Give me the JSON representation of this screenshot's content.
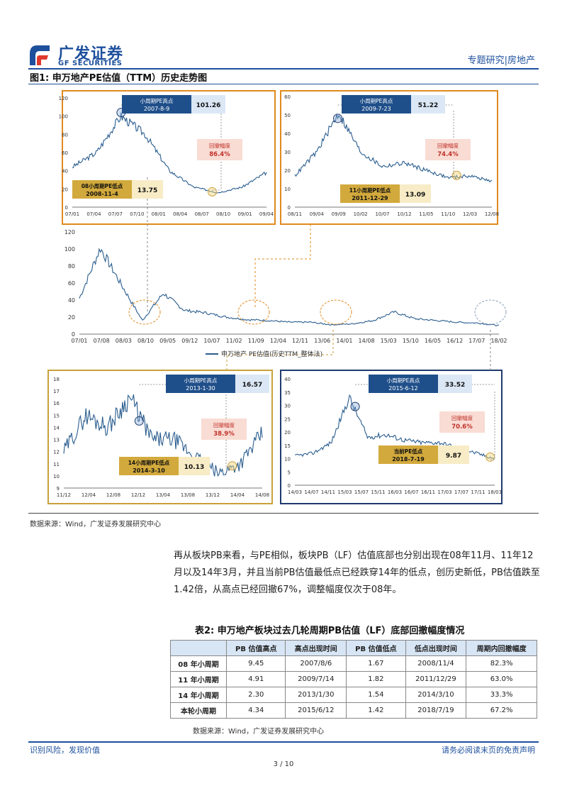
{
  "header": {
    "brand_zh": "广发证券",
    "brand_en": "GF SECURITIES",
    "section": "专题研究|房地产"
  },
  "figure": {
    "title": "图1:  申万地产PE估值（TTM）历史走势图",
    "source": "数据来源：Wind，广发证券发展研究中心",
    "main": {
      "legend": "申万地产 PE估值(历史TTM_整体法)",
      "xticks": [
        "07/01",
        "07/08",
        "08/03",
        "08/10",
        "09/05",
        "09/12",
        "10/07",
        "11/02",
        "11/09",
        "12/04",
        "12/11",
        "13/06",
        "14/01",
        "14/08",
        "15/03",
        "15/10",
        "16/05",
        "16/12",
        "17/07",
        "18/02"
      ],
      "yticks": [
        "0",
        "20",
        "40",
        "60",
        "80",
        "100",
        "120"
      ]
    },
    "panels": [
      {
        "xticks": [
          "07/01",
          "07/04",
          "07/07",
          "07/10",
          "08/01",
          "08/04",
          "08/07",
          "08/10",
          "09/01",
          "09/04"
        ],
        "yticks": [
          "0",
          "20",
          "40",
          "60",
          "80",
          "100",
          "120"
        ],
        "high_label": "小周期PE高点",
        "high_date": "2007-8-9",
        "high_value": "101.26",
        "low_label": "08小周期PE低点",
        "low_date": "2008-11-4",
        "low_value": "13.75",
        "drop_label": "回撤幅度",
        "drop_value": "86.4%"
      },
      {
        "xticks": [
          "08/11",
          "09/04",
          "09/09",
          "10/02",
          "10/07",
          "10/12",
          "11/05",
          "11/10",
          "12/03",
          "12/08"
        ],
        "yticks": [
          "0",
          "10",
          "20",
          "30",
          "40",
          "50",
          "60"
        ],
        "high_label": "小周期PE高点",
        "high_date": "2009-7-23",
        "high_value": "51.22",
        "low_label": "11小周期PE低点",
        "low_date": "2011-12-29",
        "low_value": "13.09",
        "drop_label": "回撤幅度",
        "drop_value": "74.4%"
      },
      {
        "xticks": [
          "11/12",
          "12/04",
          "12/08",
          "12/12",
          "13/04",
          "13/08",
          "13/12",
          "14/04",
          "14/08"
        ],
        "yticks": [
          "9",
          "10",
          "11",
          "12",
          "13",
          "14",
          "15",
          "16",
          "17",
          "18"
        ],
        "high_label": "小周期PE高点",
        "high_date": "2013-1-30",
        "high_value": "16.57",
        "low_label": "14小周期PE低点",
        "low_date": "2014-3-10",
        "low_value": "10.13",
        "drop_label": "回撤幅度",
        "drop_value": "38.9%"
      },
      {
        "xticks": [
          "14/03",
          "14/07",
          "14/11",
          "15/03",
          "15/07",
          "15/11",
          "16/03",
          "16/07",
          "16/11",
          "17/03",
          "17/07",
          "17/11",
          "18/03"
        ],
        "yticks": [
          "0",
          "5",
          "10",
          "15",
          "20",
          "25",
          "30",
          "35",
          "40"
        ],
        "high_label": "小周期PE高点",
        "high_date": "2015-6-12",
        "high_value": "33.52",
        "low_label": "当前PE低点",
        "low_date": "2018-7-19",
        "low_value": "9.87",
        "drop_label": "回撤幅度",
        "drop_value": "70.6%"
      }
    ]
  },
  "paragraph": "再从板块PB来看，与PE相似，板块PB（LF）估值底部也分别出现在08年11月、11年12月以及14年3月，并且当前PB估值最低点已经跌穿14年的低点，创历史新低，PB估值跌至1.42倍，从高点已经回撤67%，调整幅度仅次于08年。",
  "table": {
    "title": "表2:  申万地产板块过去几轮周期PB估值（LF）底部回撤幅度情况",
    "headers": [
      "",
      "PB 估值高点",
      "高点出现时间",
      "PB 估值低点",
      "低点出现时间",
      "周期内回撤幅度"
    ],
    "rows": [
      [
        "08 年小周期",
        "9.45",
        "2007/8/6",
        "1.67",
        "2008/11/4",
        "82.3%"
      ],
      [
        "11 年小周期",
        "4.91",
        "2009/7/14",
        "1.82",
        "2011/12/29",
        "63.0%"
      ],
      [
        "14 年小周期",
        "2.30",
        "2013/1/30",
        "1.54",
        "2014/3/10",
        "33.3%"
      ],
      [
        "本轮小周期",
        "4.34",
        "2015/6/12",
        "1.42",
        "2018/7/19",
        "67.2%"
      ]
    ],
    "source": "数据来源：Wind，广发证券发展研究中心"
  },
  "footer": {
    "left": "识别风险，发现价值",
    "right": "请务必阅读末页的免责声明",
    "page": "3 / 10"
  },
  "colors": {
    "brand": "#1d4f9c",
    "line": "#2a5d8f",
    "orange": "#e08a1e",
    "navy": "#1f3a6e",
    "olive": "#c9a13a"
  },
  "chart_data": [
    {
      "type": "line",
      "name": "main",
      "ylim": [
        0,
        120
      ],
      "x": [
        "07/01",
        "07/08",
        "08/03",
        "08/10",
        "09/05",
        "09/12",
        "10/07",
        "11/02",
        "11/09",
        "12/04",
        "12/11",
        "13/06",
        "14/01",
        "14/08",
        "15/03",
        "15/10",
        "16/05",
        "16/12",
        "17/07",
        "18/02",
        "18/07"
      ],
      "values": [
        42,
        101,
        58,
        16,
        48,
        28,
        25,
        20,
        17,
        16,
        14,
        14,
        11,
        12,
        16,
        26,
        18,
        16,
        14,
        13,
        10
      ]
    }
  ]
}
